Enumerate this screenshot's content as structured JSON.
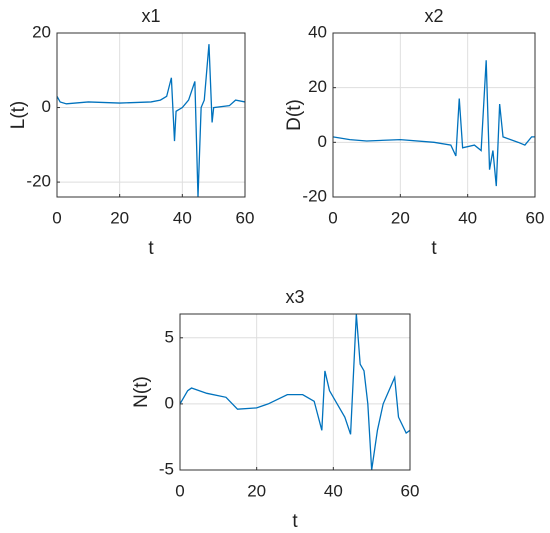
{
  "chart_data": [
    {
      "type": "line",
      "title": "x1",
      "xlabel": "t",
      "ylabel": "L(t)",
      "color": "#0072bd",
      "grid": true,
      "xlim": [
        0,
        60
      ],
      "xticks": [
        0,
        20,
        40,
        60
      ],
      "ylim": [
        -24,
        20
      ],
      "yticks": [
        -20,
        0,
        20
      ],
      "x": [
        0,
        1,
        3,
        10,
        20,
        30,
        33,
        35,
        36.5,
        37.5,
        38,
        40,
        42,
        44,
        45,
        46,
        47,
        48.5,
        49.5,
        50,
        55,
        57,
        60
      ],
      "values": [
        3,
        1.5,
        1,
        1.5,
        1.2,
        1.5,
        2,
        3,
        8,
        -9,
        -1,
        0,
        2,
        7,
        -24,
        0,
        2,
        17,
        -4,
        0,
        0.5,
        2,
        1.5
      ]
    },
    {
      "type": "line",
      "title": "x2",
      "xlabel": "t",
      "ylabel": "D(t)",
      "color": "#0072bd",
      "grid": true,
      "xlim": [
        0,
        60
      ],
      "xticks": [
        0,
        20,
        40,
        60
      ],
      "ylim": [
        -20,
        40
      ],
      "yticks": [
        -20,
        0,
        20,
        40
      ],
      "x": [
        0,
        5,
        10,
        20,
        30,
        35,
        36.5,
        37.5,
        38.5,
        42,
        44,
        45.5,
        46.5,
        47.5,
        48.5,
        49.5,
        50.5,
        55,
        57,
        59,
        60
      ],
      "values": [
        2,
        1,
        0.5,
        1,
        0,
        -1,
        -5,
        16,
        -2,
        -1,
        -3,
        30,
        -10,
        -3,
        -16,
        14,
        2,
        0,
        -1,
        2,
        2
      ]
    },
    {
      "type": "line",
      "title": "x3",
      "xlabel": "t",
      "ylabel": "N(t)",
      "color": "#0072bd",
      "grid": true,
      "xlim": [
        0,
        60
      ],
      "xticks": [
        0,
        20,
        40,
        60
      ],
      "ylim": [
        -5,
        6.8
      ],
      "yticks": [
        -5,
        0,
        5
      ],
      "x": [
        0,
        2,
        3,
        7,
        12,
        15,
        20,
        23,
        28,
        32,
        35,
        37,
        37.8,
        39,
        41,
        43,
        44.5,
        46,
        47,
        48,
        49,
        50,
        51.5,
        53,
        56,
        57,
        59,
        60
      ],
      "values": [
        0,
        1,
        1.2,
        0.8,
        0.5,
        -0.4,
        -0.3,
        0,
        0.7,
        0.7,
        0.2,
        -2,
        2.5,
        1,
        0,
        -1,
        -2.3,
        6.8,
        3,
        2.5,
        0,
        -5,
        -2,
        0,
        2,
        -1,
        -2.2,
        -2
      ]
    }
  ]
}
